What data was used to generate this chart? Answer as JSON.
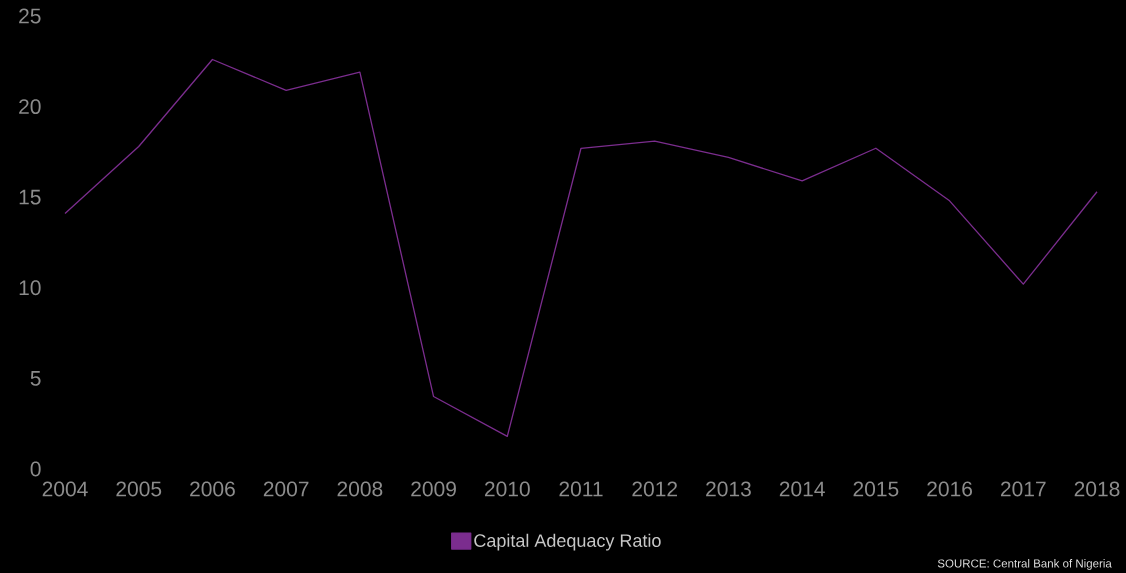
{
  "chart_data": {
    "type": "line",
    "categories": [
      "2004",
      "2005",
      "2006",
      "2007",
      "2008",
      "2009",
      "2010",
      "2011",
      "2012",
      "2013",
      "2014",
      "2015",
      "2016",
      "2017",
      "2018"
    ],
    "series": [
      {
        "name": "Capital Adequacy Ratio",
        "color": "#7b2d8e",
        "values": [
          14.1,
          17.8,
          22.6,
          20.9,
          21.9,
          4.0,
          1.8,
          17.7,
          18.1,
          17.2,
          15.9,
          17.7,
          14.8,
          10.2,
          15.3
        ]
      }
    ],
    "ylim": [
      0,
      25
    ],
    "yticks": [
      0,
      5,
      10,
      15,
      20,
      25
    ],
    "legend": "bottom",
    "grid": false,
    "marker": "none",
    "line_style": "solid",
    "annotations": [
      "SOURCE: Central Bank of Nigeria"
    ]
  }
}
